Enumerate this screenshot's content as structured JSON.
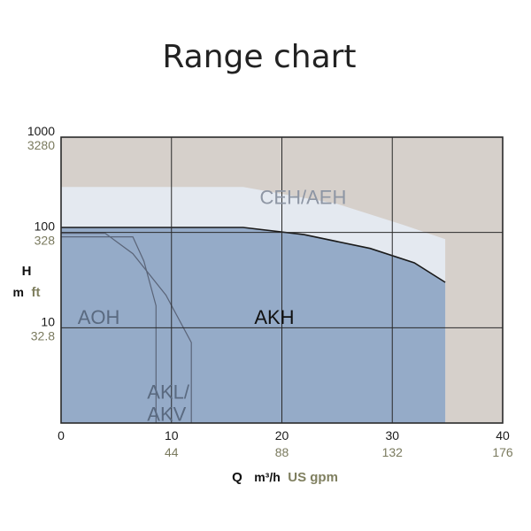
{
  "chart_data": {
    "type": "area",
    "title": "Range chart",
    "x_axis": {
      "symbol": "Q",
      "unit_primary": "m³/h",
      "unit_secondary": "US gpm",
      "lim": [
        0,
        35
      ],
      "ticks": [
        0,
        10,
        20,
        30,
        40
      ],
      "tick_labels_primary": [
        "0",
        "10",
        "20",
        "30",
        "40"
      ],
      "tick_labels_secondary": [
        "",
        "44",
        "88",
        "132",
        "176"
      ]
    },
    "y_axis": {
      "symbol": "H",
      "unit_primary": "m",
      "unit_secondary": "ft",
      "scale": "log",
      "lim": [
        1,
        1000
      ],
      "ticks": [
        10,
        100,
        1000
      ],
      "tick_labels_primary": [
        "10",
        "100",
        "1000"
      ],
      "tick_labels_secondary": [
        "32.8",
        "328",
        "3280"
      ]
    },
    "grid": true,
    "regions": [
      {
        "name": "CEH/AEH",
        "color": "#e4e9f0",
        "label_at": [
          18,
          200
        ],
        "boundary": [
          [
            0,
            1
          ],
          [
            0,
            300
          ],
          [
            16.5,
            300
          ],
          [
            25,
            200
          ],
          [
            31,
            120
          ],
          [
            34.8,
            85
          ],
          [
            34.8,
            1
          ]
        ]
      },
      {
        "name": "AKH",
        "color": "#95abc8",
        "label_at": [
          17.5,
          11
        ],
        "boundary": [
          [
            0,
            1
          ],
          [
            0,
            113
          ],
          [
            16.5,
            113
          ],
          [
            22,
            95
          ],
          [
            28,
            68
          ],
          [
            32,
            48
          ],
          [
            34.8,
            30
          ],
          [
            34.8,
            1
          ]
        ]
      },
      {
        "name": "AOH",
        "color": "#5e7289",
        "label_at": [
          1.5,
          11
        ],
        "boundary": [
          [
            0,
            90
          ],
          [
            6.5,
            90
          ],
          [
            7.5,
            50
          ],
          [
            8.6,
            17
          ],
          [
            8.6,
            1
          ]
        ]
      },
      {
        "name": "AKL/\nAKV",
        "color": "#5e7289",
        "label_at": [
          7.8,
          1.8
        ],
        "boundary": [
          [
            0,
            98
          ],
          [
            4,
            98
          ],
          [
            6.5,
            60
          ],
          [
            9.5,
            22
          ],
          [
            11.8,
            7
          ],
          [
            11.8,
            1
          ]
        ]
      }
    ],
    "colors": {
      "background": "#d6d0cb",
      "frame": "#2a2a2a",
      "grid": "#2a2a2a",
      "curve_line": "#1a1a1a",
      "region_line": "#5a6478"
    }
  }
}
